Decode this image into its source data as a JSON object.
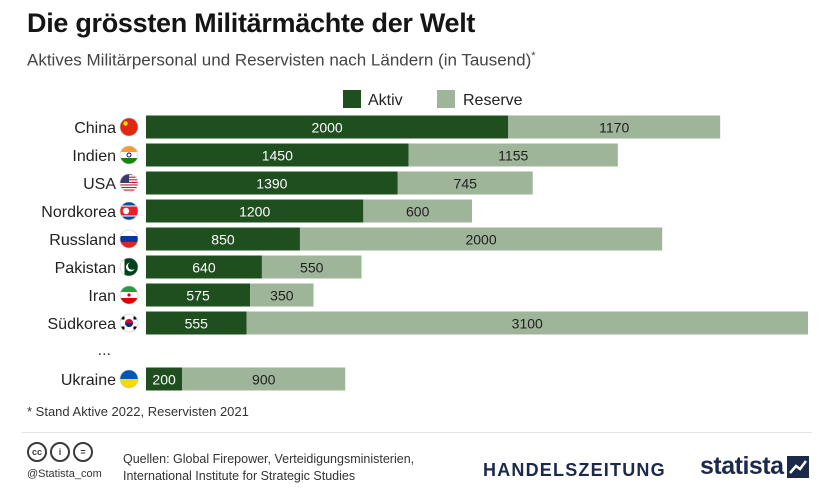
{
  "header": {
    "title": "Die grössten Militärmächte der Welt",
    "subtitle": "Aktives Militärpersonal und Reservisten nach Ländern (in Tausend)",
    "subtitle_mark": "*"
  },
  "chart_data": {
    "type": "bar",
    "orientation": "horizontal",
    "stacked": true,
    "categories": [
      "China",
      "Indien",
      "USA",
      "Nordkorea",
      "Russland",
      "Pakistan",
      "Iran",
      "Südkorea",
      "Ukraine"
    ],
    "gap_label": "...",
    "series": [
      {
        "name": "Aktiv",
        "color": "#1f4f1f",
        "values": [
          2000,
          1450,
          1390,
          1200,
          850,
          640,
          575,
          555,
          200
        ]
      },
      {
        "name": "Reserve",
        "color": "#9fb59a",
        "values": [
          1170,
          1155,
          745,
          600,
          2000,
          550,
          350,
          3100,
          900
        ]
      }
    ],
    "flags": [
      "china-flag-icon",
      "india-flag-icon",
      "usa-flag-icon",
      "north-korea-flag-icon",
      "russia-flag-icon",
      "pakistan-flag-icon",
      "iran-flag-icon",
      "south-korea-flag-icon",
      "ukraine-flag-icon"
    ],
    "legend_position": "top",
    "grid": false,
    "xlim": [
      0,
      3655
    ]
  },
  "footer": {
    "note": "* Stand Aktive 2022, Reservisten 2021",
    "copyright": "@Statista_com",
    "sources_line1": "Quellen: Global Firepower, Verteidigungsministerien,",
    "sources_line2": "International Institute for Strategic Studies",
    "publisher": "HANDELSZEITUNG",
    "brand": "statista"
  }
}
